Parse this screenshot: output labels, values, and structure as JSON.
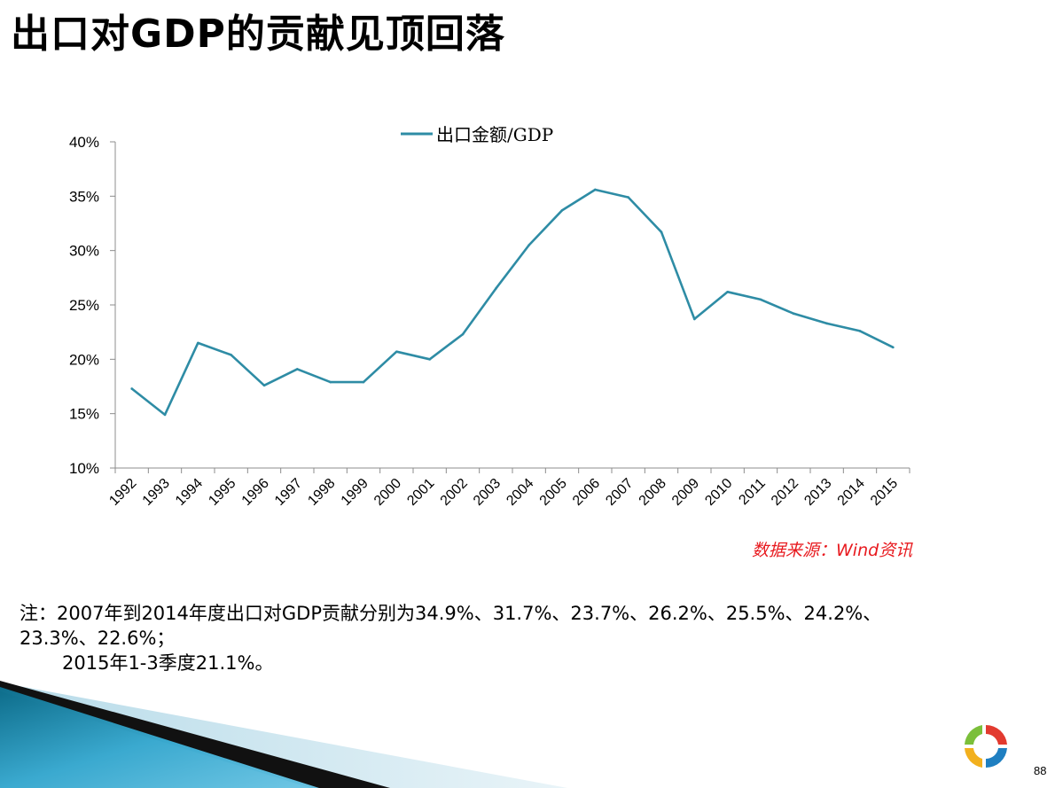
{
  "title": "出口对GDP的贡献见顶回落",
  "source": "数据来源：Wind资讯",
  "note": {
    "line1": "注：2007年到2014年度出口对GDP贡献分别为34.9%、31.7%、23.7%、26.2%、25.5%、24.2%、",
    "line2": "23.3%、22.6%；",
    "line3": "2015年1-3季度21.1%。"
  },
  "page_number": "88",
  "colors": {
    "series": "#2e8ca5",
    "source": "#e8191e",
    "axis": "#8c8c8c"
  },
  "chart_data": {
    "type": "line",
    "categories": [
      "1992",
      "1993",
      "1994",
      "1995",
      "1996",
      "1997",
      "1998",
      "1999",
      "2000",
      "2001",
      "2002",
      "2003",
      "2004",
      "2005",
      "2006",
      "2007",
      "2008",
      "2009",
      "2010",
      "2011",
      "2012",
      "2013",
      "2014",
      "2015"
    ],
    "series": [
      {
        "name": "出口金额/GDP",
        "values": [
          17.3,
          14.9,
          21.5,
          20.4,
          17.6,
          19.1,
          17.9,
          17.9,
          20.7,
          20.0,
          22.3,
          26.5,
          30.5,
          33.7,
          35.6,
          34.9,
          31.7,
          23.7,
          26.2,
          25.5,
          24.2,
          23.3,
          22.6,
          21.1
        ]
      }
    ],
    "ylim": [
      10,
      40
    ],
    "yticks": [
      10,
      15,
      20,
      25,
      30,
      35,
      40
    ],
    "ytick_suffix": "%",
    "legend_position": "top-center",
    "grid": false
  }
}
